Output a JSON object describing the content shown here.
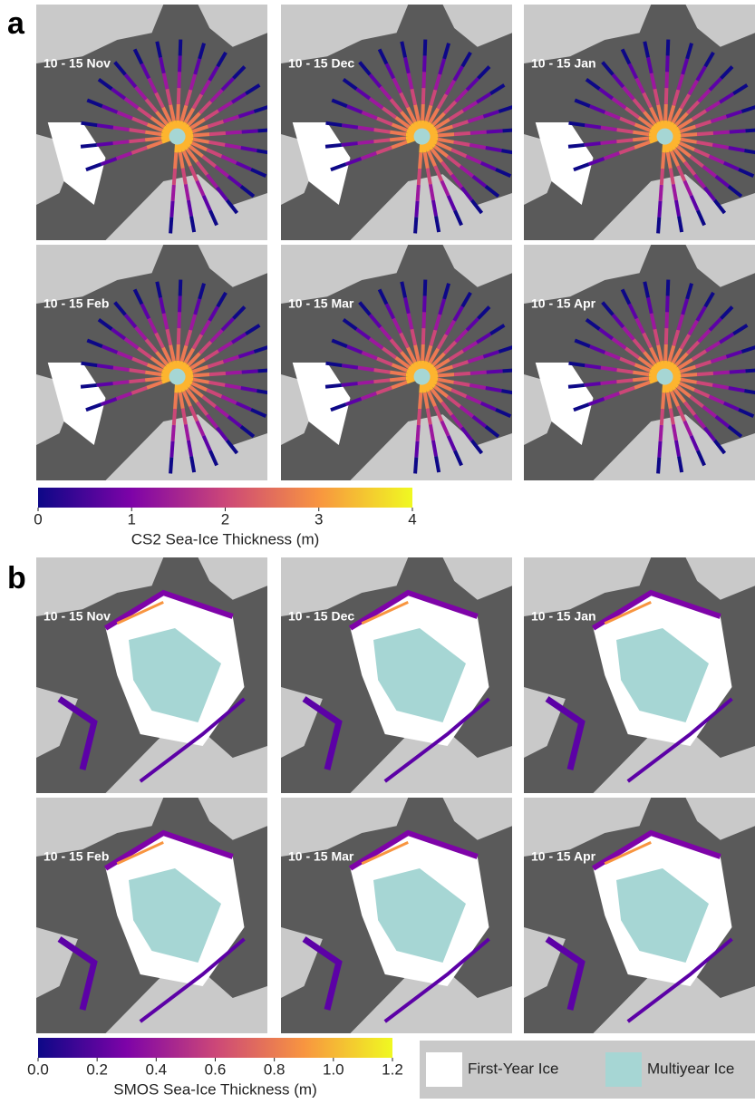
{
  "panel_a": {
    "label": "a",
    "maps": [
      "10 - 15 Nov",
      "10 - 15 Dec",
      "10 - 15 Jan",
      "10 - 15 Feb",
      "10 - 15 Mar",
      "10 - 15 Apr"
    ],
    "colorbar": {
      "lim": [
        0,
        4
      ],
      "ticks": [
        0,
        1,
        2,
        3,
        4
      ],
      "label": "CS2 Sea-Ice Thickness (m)"
    }
  },
  "panel_b": {
    "label": "b",
    "maps": [
      "10 - 15 Nov",
      "10 - 15 Dec",
      "10 - 15 Jan",
      "10 - 15 Feb",
      "10 - 15 Mar",
      "10 - 15 Apr"
    ],
    "colorbar": {
      "lim": [
        0,
        1.2
      ],
      "ticks": [
        {
          "value": 0,
          "label": "0.0"
        },
        0.2,
        0.4,
        0.6,
        0.8,
        {
          "value": 1,
          "label": "1.0"
        },
        1.2
      ],
      "label": "SMOS Sea-Ice Thickness (m)"
    },
    "legend": [
      {
        "label": "First-Year Ice",
        "color": "#ffffff"
      },
      {
        "label": "Multiyear Ice",
        "color": "#a6d6d4"
      }
    ]
  }
}
